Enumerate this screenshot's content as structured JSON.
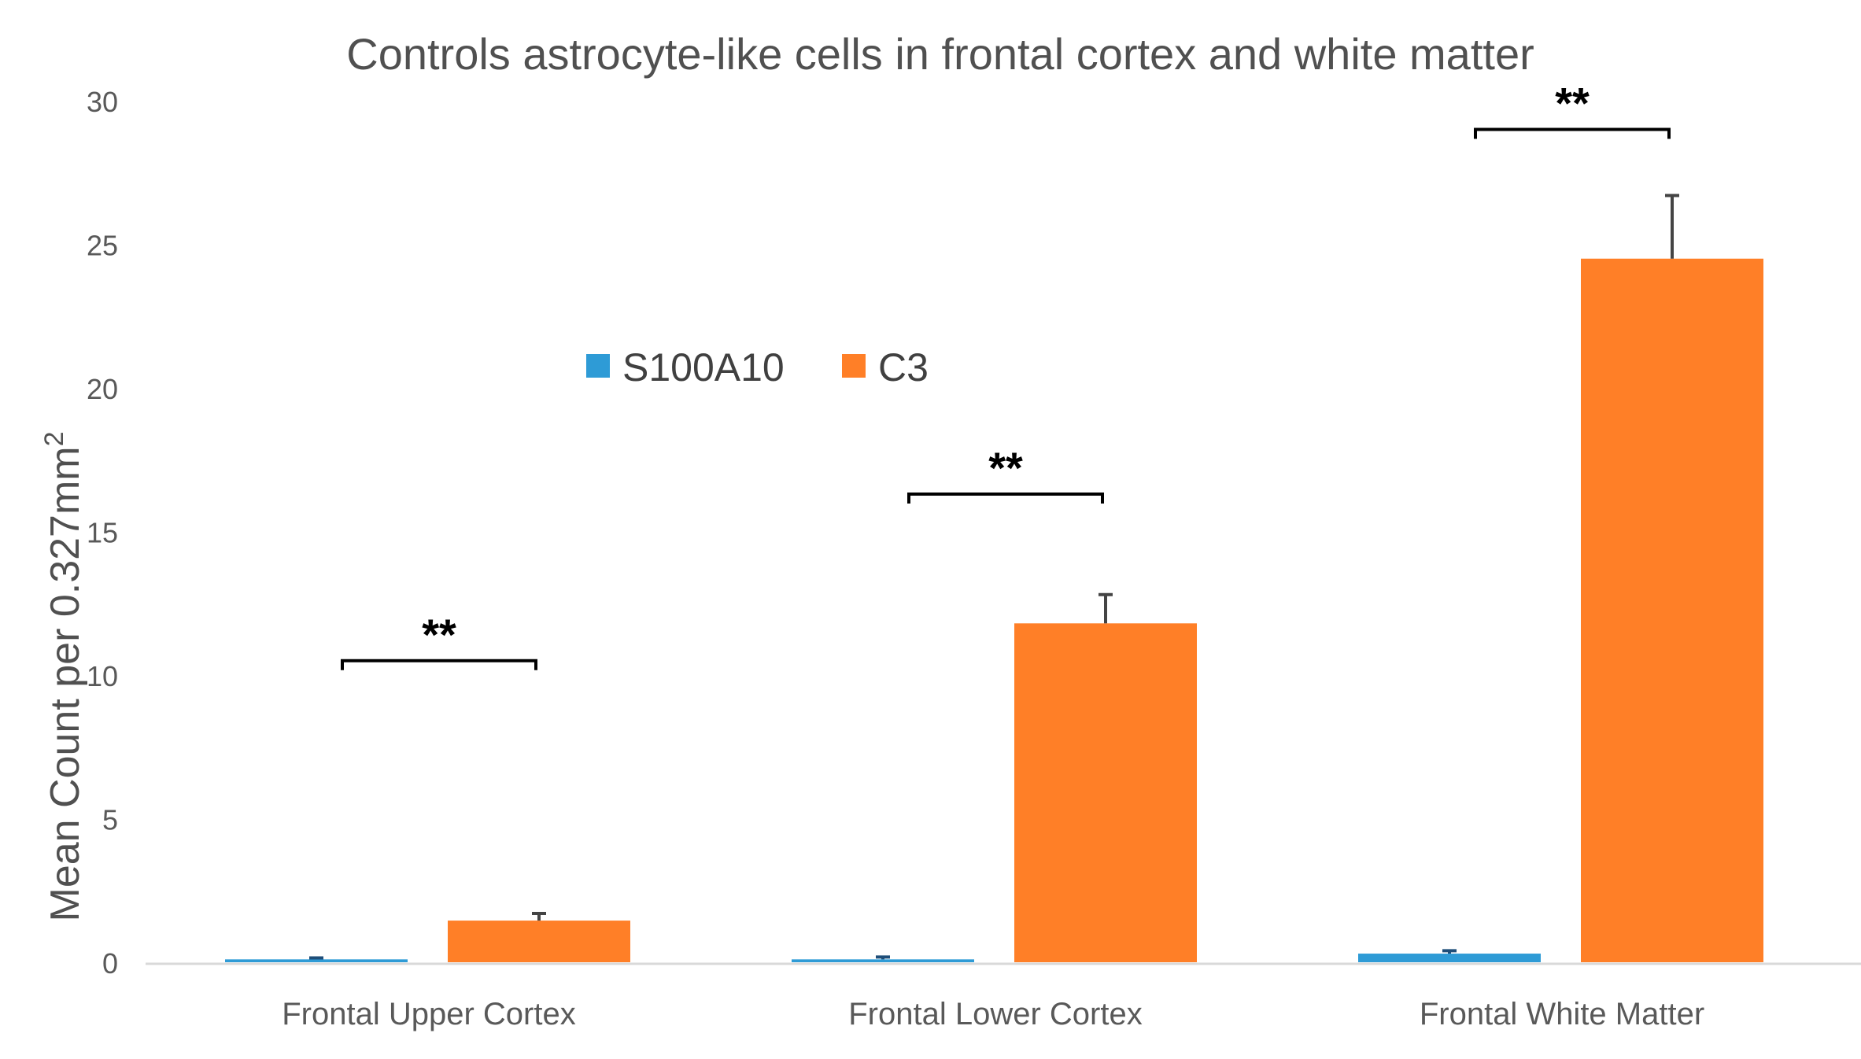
{
  "chart_data": {
    "type": "bar",
    "title": "Controls astrocyte-like cells in frontal cortex and white matter",
    "xlabel": "",
    "ylabel": "Mean Count per  0.327mm",
    "ylabel_superscript": "2",
    "ylim": [
      0,
      30
    ],
    "yticks": [
      0,
      5,
      10,
      15,
      20,
      25,
      30
    ],
    "categories": [
      "Frontal Upper Cortex",
      "Frontal Lower Cortex",
      "Frontal White Matter"
    ],
    "series": [
      {
        "name": "S100A10",
        "color": "#2E9BD6",
        "values": [
          0.1,
          0.1,
          0.3
        ],
        "errors": [
          0.05,
          0.08,
          0.1
        ]
      },
      {
        "name": "C3",
        "color": "#FF7F27",
        "values": [
          1.45,
          11.8,
          24.5
        ],
        "errors": [
          0.25,
          1.0,
          2.2
        ]
      }
    ],
    "significance": [
      {
        "category": "Frontal Upper Cortex",
        "label": "**",
        "level": 10.5
      },
      {
        "category": "Frontal Lower Cortex",
        "label": "**",
        "level": 16.3
      },
      {
        "category": "Frontal White Matter",
        "label": "**",
        "level": 29.0
      }
    ],
    "legend": {
      "position": "upper-center",
      "entries": [
        "S100A10",
        "C3"
      ]
    },
    "grid": false
  }
}
